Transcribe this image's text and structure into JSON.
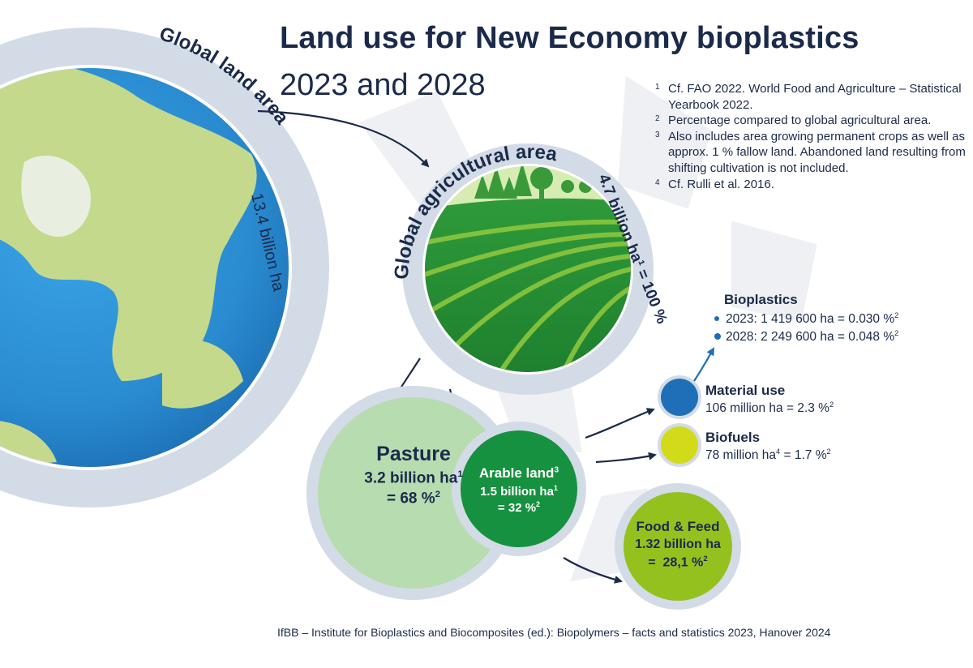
{
  "title": {
    "line1": "Land use for New Economy bioplastics",
    "line2": "2023 and 2028"
  },
  "footnotes": [
    {
      "marker": "1",
      "text": "Cf. FAO 2022. World Food and Agriculture – Statistical Yearbook 2022."
    },
    {
      "marker": "2",
      "text": "Percentage compared to global agricultural area."
    },
    {
      "marker": "3",
      "text": "Also includes area growing permanent crops as well as approx. 1 % fallow land. Abandoned land resulting from shifting cultivation is not included."
    },
    {
      "marker": "4",
      "text": "Cf. Rulli et al. 2016."
    }
  ],
  "globe": {
    "ring_text": "Global land area",
    "ring_value": "13.4 billion ha"
  },
  "agricultural": {
    "ring_text": "Global agricultural area",
    "ring_value": "4.7 billion ha¹ = 100 %"
  },
  "pasture": {
    "name": "Pasture",
    "value": "3.2 billion ha",
    "value_sup": "1",
    "percent": "= 68 %",
    "percent_sup": "2"
  },
  "arable": {
    "name": "Arable land",
    "name_sup": "3",
    "value": "1.5 billion ha",
    "value_sup": "1",
    "percent": "= 32 %",
    "percent_sup": "2"
  },
  "material_use": {
    "name": "Material use",
    "value": "106 million ha = 2.3 %",
    "value_sup": "2"
  },
  "biofuels": {
    "name": "Biofuels",
    "value_a": "78 million ha",
    "value_a_sup": "4",
    "value_b": " = 1.7 %",
    "value_b_sup": "2"
  },
  "bioplastics": {
    "name": "Bioplastics",
    "line2023": "2023: 1 419 600 ha = 0.030 %",
    "line2028": "2028: 2 249 600 ha = 0.048 %",
    "sup": "2"
  },
  "food_feed": {
    "name": "Food & Feed",
    "value": "1.32 billion ha",
    "percent": "=  28,1 %",
    "percent_sup": "2"
  },
  "footer": "IfBB – Institute for Bioplastics and Biocomposites (ed.): Biopolymers – facts and statistics 2023, Hanover 2024",
  "colors": {
    "navy": "#1b2a4a",
    "ring": "#d3dbe6",
    "ocean": "#2b8fd4",
    "land": "#c5d98c",
    "pasture": "#b7dcb0",
    "arable": "#16913f",
    "food_feed": "#95c11f",
    "material": "#1e6fb8",
    "biofuels": "#d3da1a",
    "hex_bg": "#eef0f3"
  }
}
